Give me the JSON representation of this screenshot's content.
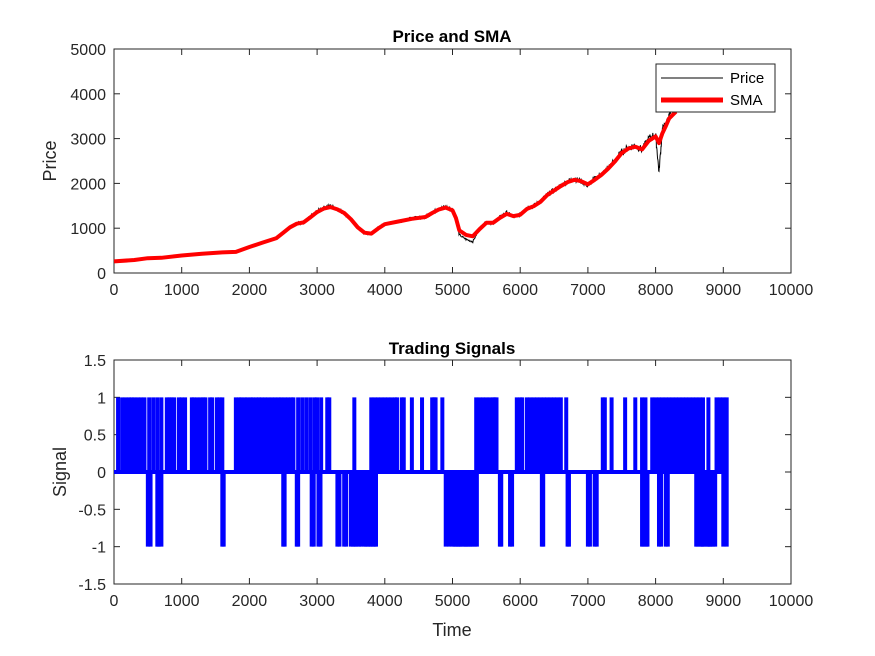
{
  "colors": {
    "price": "#000000",
    "sma": "#ff0000",
    "signal": "#0000ff",
    "axes": "#262626"
  },
  "chart_data": [
    {
      "type": "line",
      "title": "Price and SMA",
      "xlabel": "",
      "ylabel": "Price",
      "xlim": [
        0,
        10000
      ],
      "ylim": [
        0,
        5000
      ],
      "xticks": [
        0,
        1000,
        2000,
        3000,
        4000,
        5000,
        6000,
        7000,
        8000,
        9000,
        10000
      ],
      "yticks": [
        0,
        1000,
        2000,
        3000,
        4000,
        5000
      ],
      "grid": false,
      "legend": "top-right",
      "series": [
        {
          "name": "Price",
          "x": [
            0,
            300,
            500,
            700,
            1000,
            1300,
            1600,
            1800,
            2000,
            2200,
            2400,
            2500,
            2600,
            2700,
            2800,
            2900,
            3000,
            3100,
            3200,
            3300,
            3400,
            3500,
            3600,
            3700,
            3800,
            3900,
            4000,
            4200,
            4400,
            4600,
            4700,
            4800,
            4900,
            5000,
            5050,
            5100,
            5200,
            5300,
            5400,
            5500,
            5600,
            5700,
            5800,
            5900,
            6000,
            6100,
            6200,
            6300,
            6400,
            6500,
            6600,
            6700,
            6800,
            6900,
            7000,
            7100,
            7200,
            7300,
            7400,
            7500,
            7600,
            7700,
            7800,
            7900,
            8000,
            8050,
            8100,
            8150,
            8200,
            8300
          ],
          "y": [
            260,
            290,
            330,
            340,
            390,
            430,
            460,
            470,
            580,
            680,
            780,
            900,
            1020,
            1120,
            1100,
            1250,
            1380,
            1460,
            1500,
            1420,
            1350,
            1200,
            1000,
            880,
            870,
            1000,
            1100,
            1150,
            1220,
            1250,
            1350,
            1430,
            1480,
            1400,
            1200,
            850,
            750,
            700,
            1000,
            1150,
            1100,
            1250,
            1350,
            1250,
            1300,
            1450,
            1500,
            1600,
            1750,
            1850,
            1950,
            2050,
            2100,
            2050,
            1950,
            2100,
            2200,
            2350,
            2500,
            2700,
            2800,
            2850,
            2750,
            3000,
            3100,
            2250,
            3200,
            3300,
            3500,
            3700
          ]
        },
        {
          "name": "SMA",
          "x": [
            0,
            300,
            500,
            700,
            1000,
            1300,
            1600,
            1800,
            2000,
            2200,
            2400,
            2500,
            2600,
            2700,
            2800,
            2900,
            3000,
            3100,
            3200,
            3300,
            3400,
            3500,
            3600,
            3700,
            3800,
            3900,
            4000,
            4200,
            4400,
            4600,
            4700,
            4800,
            4900,
            5000,
            5050,
            5100,
            5200,
            5300,
            5400,
            5500,
            5600,
            5700,
            5800,
            5900,
            6000,
            6100,
            6200,
            6300,
            6400,
            6500,
            6600,
            6700,
            6800,
            6900,
            7000,
            7100,
            7200,
            7300,
            7400,
            7500,
            7600,
            7700,
            7800,
            7900,
            8000,
            8050,
            8100,
            8150,
            8200,
            8300
          ],
          "y": [
            260,
            290,
            330,
            340,
            390,
            430,
            460,
            470,
            580,
            680,
            780,
            900,
            1020,
            1100,
            1130,
            1240,
            1360,
            1440,
            1470,
            1420,
            1340,
            1200,
            1020,
            900,
            880,
            990,
            1090,
            1150,
            1210,
            1250,
            1340,
            1420,
            1460,
            1400,
            1230,
            950,
            850,
            820,
            980,
            1120,
            1120,
            1230,
            1320,
            1270,
            1300,
            1430,
            1490,
            1590,
            1740,
            1840,
            1940,
            2030,
            2080,
            2050,
            1980,
            2080,
            2190,
            2330,
            2490,
            2680,
            2780,
            2820,
            2760,
            2950,
            3050,
            2900,
            3120,
            3280,
            3450,
            3600
          ]
        }
      ]
    },
    {
      "type": "line",
      "title": "Trading Signals",
      "xlabel": "Time",
      "ylabel": "Signal",
      "xlim": [
        0,
        10000
      ],
      "ylim": [
        -1.5,
        1.5
      ],
      "xticks": [
        0,
        1000,
        2000,
        3000,
        4000,
        5000,
        6000,
        7000,
        8000,
        9000,
        10000
      ],
      "yticks": [
        -1.5,
        -1,
        -0.5,
        0,
        0.5,
        1,
        1.5
      ],
      "yticklabels": [
        "-1.5",
        "-1",
        "-0.5",
        "0",
        "0.5",
        "1",
        "1.5"
      ],
      "grid": false,
      "series": [
        {
          "x_end": 9050,
          "baseline": 0,
          "buy_x": [
            60,
            120,
            170,
            220,
            260,
            300,
            350,
            400,
            450,
            520,
            580,
            640,
            700,
            780,
            820,
            850,
            890,
            960,
            1000,
            1050,
            1150,
            1180,
            1230,
            1280,
            1320,
            1350,
            1420,
            1450,
            1520,
            1560,
            1600,
            1800,
            1850,
            1880,
            1930,
            1970,
            2020,
            2050,
            2100,
            2140,
            2180,
            2230,
            2280,
            2330,
            2380,
            2430,
            2470,
            2520,
            2570,
            2620,
            2650,
            2720,
            2780,
            2840,
            2900,
            2960,
            3000,
            3060,
            3150,
            3180,
            3550,
            3800,
            3850,
            3900,
            3950,
            4000,
            4050,
            4100,
            4150,
            4180,
            4250,
            4280,
            4400,
            4550,
            4700,
            4730,
            4750,
            4850,
            5350,
            5400,
            5450,
            5500,
            5550,
            5600,
            5620,
            5650,
            5950,
            6000,
            6030,
            6100,
            6150,
            6200,
            6250,
            6300,
            6350,
            6400,
            6450,
            6500,
            6550,
            6600,
            6680,
            7220,
            7250,
            7350,
            7550,
            7700,
            7800,
            7850,
            7950,
            8000,
            8050,
            8100,
            8150,
            8200,
            8250,
            8300,
            8350,
            8400,
            8450,
            8500,
            8550,
            8600,
            8650,
            8700,
            8780,
            8900,
            8950,
            9000,
            9050
          ],
          "sell_x": [
            500,
            540,
            640,
            660,
            700,
            1600,
            1620,
            2500,
            2520,
            2700,
            2720,
            2920,
            2950,
            3020,
            3050,
            3300,
            3330,
            3400,
            3430,
            3500,
            3530,
            3560,
            3580,
            3620,
            3650,
            3700,
            3720,
            3750,
            3780,
            3800,
            3830,
            3850,
            3870,
            4900,
            4950,
            5000,
            5030,
            5050,
            5080,
            5100,
            5120,
            5150,
            5180,
            5200,
            5220,
            5250,
            5270,
            5300,
            5330,
            5360,
            5700,
            5720,
            5850,
            5880,
            6320,
            6340,
            6700,
            6720,
            7000,
            7030,
            7100,
            7130,
            7800,
            7820,
            7860,
            7880,
            8050,
            8080,
            8150,
            8180,
            8600,
            8620,
            8660,
            8680,
            8700,
            8720,
            8760,
            8780,
            8800,
            8820,
            8850,
            8880,
            9000,
            9050
          ]
        }
      ]
    }
  ],
  "legend": {
    "items": [
      "Price",
      "SMA"
    ]
  }
}
